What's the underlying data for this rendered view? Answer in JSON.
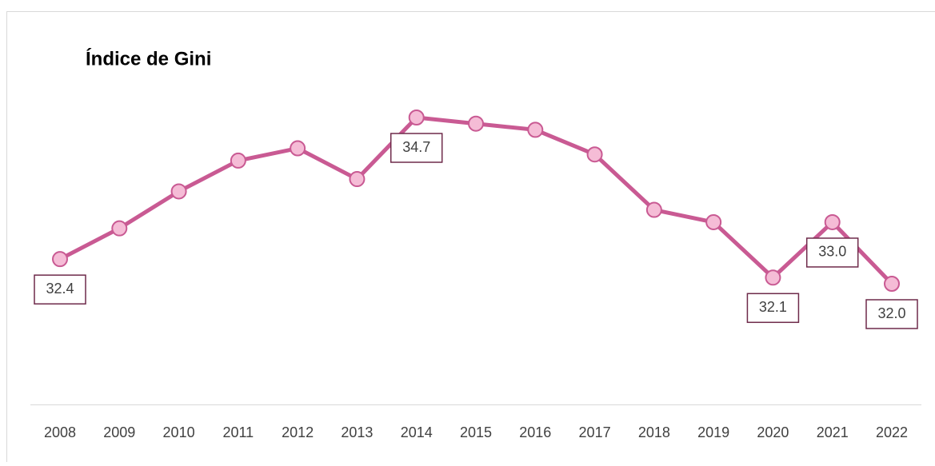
{
  "chart_data": {
    "type": "line",
    "title": "Índice de Gini",
    "categories": [
      "2008",
      "2009",
      "2010",
      "2011",
      "2012",
      "2013",
      "2014",
      "2015",
      "2016",
      "2017",
      "2018",
      "2019",
      "2020",
      "2021",
      "2022"
    ],
    "series": [
      {
        "name": null,
        "color": "#c95a93",
        "values": [
          32.4,
          32.9,
          33.5,
          34.0,
          34.2,
          33.7,
          34.7,
          34.6,
          34.5,
          34.1,
          33.2,
          33.0,
          32.1,
          33.0,
          32.0
        ],
        "value_labels": [
          "32.4",
          null,
          null,
          null,
          null,
          null,
          "34.7",
          null,
          null,
          null,
          null,
          null,
          "32.1",
          "33.0",
          "32.0"
        ]
      }
    ]
  }
}
